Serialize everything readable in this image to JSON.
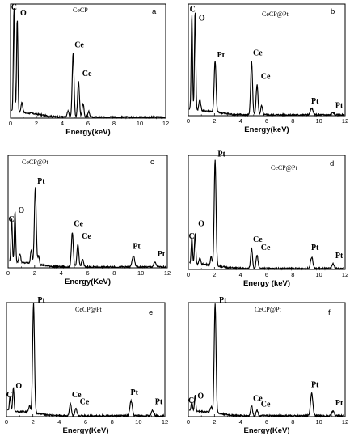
{
  "chart_data": [
    {
      "type": "line",
      "panel_letter": "a",
      "sample": "CeCP",
      "xlabel": "Energy(keV)",
      "ylabel": "",
      "xlim": [
        0,
        12
      ],
      "xticks": [
        0,
        2,
        4,
        6,
        8,
        10,
        12
      ],
      "grid": false,
      "ylim": [
        0,
        100
      ],
      "peaks": [
        {
          "x": 0.27,
          "y": 92,
          "w": 0.05
        },
        {
          "x": 0.52,
          "y": 83,
          "w": 0.05
        },
        {
          "x": 0.88,
          "y": 9,
          "w": 0.07
        },
        {
          "x": 4.45,
          "y": 5,
          "w": 0.07
        },
        {
          "x": 4.84,
          "y": 56,
          "w": 0.07
        },
        {
          "x": 5.26,
          "y": 31,
          "w": 0.07
        },
        {
          "x": 5.61,
          "y": 12,
          "w": 0.07
        },
        {
          "x": 6.05,
          "y": 5,
          "w": 0.07
        }
      ],
      "labels": [
        {
          "text": "C",
          "x": 0.05,
          "y": 95
        },
        {
          "text": "O",
          "x": 0.75,
          "y": 90
        },
        {
          "text": "Ce",
          "x": 4.95,
          "y": 62
        },
        {
          "text": "Ce",
          "x": 5.55,
          "y": 37
        }
      ]
    },
    {
      "type": "line",
      "panel_letter": "b",
      "sample": "CeCP@Pt",
      "xlabel": "Energy(keV)",
      "ylabel": "",
      "xlim": [
        0,
        12
      ],
      "xticks": [
        0,
        2,
        4,
        6,
        8,
        10,
        12
      ],
      "grid": false,
      "ylim": [
        0,
        100
      ],
      "peaks": [
        {
          "x": 0.27,
          "y": 86,
          "w": 0.05
        },
        {
          "x": 0.52,
          "y": 89,
          "w": 0.05
        },
        {
          "x": 0.88,
          "y": 10,
          "w": 0.07
        },
        {
          "x": 2.05,
          "y": 46,
          "w": 0.07
        },
        {
          "x": 4.84,
          "y": 48,
          "w": 0.07
        },
        {
          "x": 5.26,
          "y": 27,
          "w": 0.07
        },
        {
          "x": 5.61,
          "y": 8,
          "w": 0.07
        },
        {
          "x": 9.44,
          "y": 6,
          "w": 0.09
        },
        {
          "x": 11.07,
          "y": 2,
          "w": 0.09
        }
      ],
      "labels": [
        {
          "text": "C",
          "x": 0.1,
          "y": 93
        },
        {
          "text": "O",
          "x": 0.8,
          "y": 85
        },
        {
          "text": "Pt",
          "x": 2.2,
          "y": 52
        },
        {
          "text": "Ce",
          "x": 4.95,
          "y": 54
        },
        {
          "text": "Ce",
          "x": 5.55,
          "y": 33
        },
        {
          "text": "Pt",
          "x": 9.4,
          "y": 11
        },
        {
          "text": "Pt",
          "x": 11.25,
          "y": 7
        }
      ]
    },
    {
      "type": "line",
      "panel_letter": "c",
      "sample": "CeCP@Pt",
      "xlabel": "Energy(KeV)",
      "ylabel": "",
      "xlim": [
        0,
        12
      ],
      "xticks": [
        0,
        2,
        4,
        6,
        8,
        10,
        12
      ],
      "grid": false,
      "ylim": [
        0,
        100
      ],
      "peaks": [
        {
          "x": 0.27,
          "y": 38,
          "w": 0.05
        },
        {
          "x": 0.52,
          "y": 46,
          "w": 0.05
        },
        {
          "x": 0.88,
          "y": 8,
          "w": 0.07
        },
        {
          "x": 1.75,
          "y": 12,
          "w": 0.06
        },
        {
          "x": 2.05,
          "y": 68,
          "w": 0.07
        },
        {
          "x": 2.3,
          "y": 8,
          "w": 0.06
        },
        {
          "x": 4.84,
          "y": 31,
          "w": 0.07
        },
        {
          "x": 5.26,
          "y": 20,
          "w": 0.07
        },
        {
          "x": 5.61,
          "y": 7,
          "w": 0.07
        },
        {
          "x": 9.44,
          "y": 10,
          "w": 0.09
        },
        {
          "x": 11.07,
          "y": 4,
          "w": 0.09
        }
      ],
      "labels": [
        {
          "text": "C",
          "x": 0.03,
          "y": 41
        },
        {
          "text": "O",
          "x": 0.75,
          "y": 49
        },
        {
          "text": "Pt",
          "x": 2.2,
          "y": 75
        },
        {
          "text": "Ce",
          "x": 4.95,
          "y": 37
        },
        {
          "text": "Ce",
          "x": 5.55,
          "y": 26
        },
        {
          "text": "Pt",
          "x": 9.4,
          "y": 17
        },
        {
          "text": "Pt",
          "x": 11.25,
          "y": 10
        }
      ]
    },
    {
      "type": "line",
      "panel_letter": "d",
      "sample": "CeCP@Pt",
      "xlabel": "Energy (keV)",
      "ylabel": "",
      "xlim": [
        0,
        12
      ],
      "xticks": [
        0,
        2,
        4,
        6,
        8,
        10,
        12
      ],
      "grid": false,
      "ylim": [
        0,
        100
      ],
      "peaks": [
        {
          "x": 0.27,
          "y": 23,
          "w": 0.05
        },
        {
          "x": 0.52,
          "y": 27,
          "w": 0.05
        },
        {
          "x": 0.88,
          "y": 5,
          "w": 0.07
        },
        {
          "x": 1.75,
          "y": 7,
          "w": 0.06
        },
        {
          "x": 2.05,
          "y": 93,
          "w": 0.07
        },
        {
          "x": 4.84,
          "y": 18,
          "w": 0.07
        },
        {
          "x": 5.26,
          "y": 12,
          "w": 0.07
        },
        {
          "x": 9.44,
          "y": 10,
          "w": 0.09
        },
        {
          "x": 11.07,
          "y": 4,
          "w": 0.09
        }
      ],
      "labels": [
        {
          "text": "C",
          "x": 0.03,
          "y": 27
        },
        {
          "text": "O",
          "x": 0.75,
          "y": 38
        },
        {
          "text": "Pt",
          "x": 2.25,
          "y": 99
        },
        {
          "text": "Ce",
          "x": 4.95,
          "y": 24
        },
        {
          "text": "Ce",
          "x": 5.55,
          "y": 17
        },
        {
          "text": "Pt",
          "x": 9.4,
          "y": 17
        },
        {
          "text": "Pt",
          "x": 11.25,
          "y": 10
        }
      ]
    },
    {
      "type": "line",
      "panel_letter": "e",
      "sample": "CeCP@Pt",
      "xlabel": "Energy(KeV)",
      "ylabel": "",
      "xlim": [
        0,
        12
      ],
      "xticks": [
        0,
        2,
        4,
        6,
        8,
        10,
        12
      ],
      "grid": false,
      "ylim": [
        0,
        100
      ],
      "peaks": [
        {
          "x": 0.27,
          "y": 12,
          "w": 0.05
        },
        {
          "x": 0.52,
          "y": 21,
          "w": 0.05
        },
        {
          "x": 1.75,
          "y": 6,
          "w": 0.06
        },
        {
          "x": 2.05,
          "y": 96,
          "w": 0.07
        },
        {
          "x": 4.84,
          "y": 11,
          "w": 0.07
        },
        {
          "x": 5.26,
          "y": 6,
          "w": 0.07
        },
        {
          "x": 9.44,
          "y": 13,
          "w": 0.09
        },
        {
          "x": 11.07,
          "y": 5,
          "w": 0.09
        }
      ],
      "labels": [
        {
          "text": "C",
          "x": 0.0,
          "y": 17
        },
        {
          "text": "O",
          "x": 0.7,
          "y": 25
        },
        {
          "text": "Pt",
          "x": 2.35,
          "y": 100
        },
        {
          "text": "Ce",
          "x": 4.95,
          "y": 17
        },
        {
          "text": "Ce",
          "x": 5.55,
          "y": 11
        },
        {
          "text": "Pt",
          "x": 9.4,
          "y": 19
        },
        {
          "text": "Pt",
          "x": 11.25,
          "y": 11
        }
      ]
    },
    {
      "type": "line",
      "panel_letter": "f",
      "sample": "CeCP@Pt",
      "xlabel": "Energy(KeV)",
      "ylabel": "",
      "xlim": [
        0,
        12
      ],
      "xticks": [
        0,
        2,
        4,
        6,
        8,
        10,
        12
      ],
      "grid": false,
      "ylim": [
        0,
        100
      ],
      "peaks": [
        {
          "x": 0.27,
          "y": 8,
          "w": 0.05
        },
        {
          "x": 0.52,
          "y": 14,
          "w": 0.05
        },
        {
          "x": 1.75,
          "y": 5,
          "w": 0.06
        },
        {
          "x": 2.05,
          "y": 96,
          "w": 0.07
        },
        {
          "x": 4.84,
          "y": 9,
          "w": 0.07
        },
        {
          "x": 5.26,
          "y": 5,
          "w": 0.07
        },
        {
          "x": 9.44,
          "y": 20,
          "w": 0.09
        },
        {
          "x": 11.07,
          "y": 4,
          "w": 0.09
        }
      ],
      "labels": [
        {
          "text": "C",
          "x": 0.0,
          "y": 12
        },
        {
          "text": "O",
          "x": 0.7,
          "y": 16
        },
        {
          "text": "Pt",
          "x": 2.35,
          "y": 100
        },
        {
          "text": "Ce",
          "x": 4.95,
          "y": 14
        },
        {
          "text": "Ce",
          "x": 5.55,
          "y": 9
        },
        {
          "text": "Pt",
          "x": 9.4,
          "y": 26
        },
        {
          "text": "Pt",
          "x": 11.25,
          "y": 10
        }
      ]
    }
  ]
}
